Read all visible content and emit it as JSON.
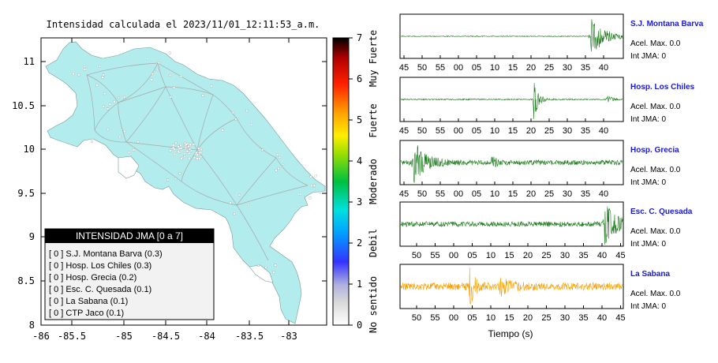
{
  "map": {
    "title": "Intensidad calculada el 2023/11/01_12:11:53_a.m.",
    "x_ticks": [
      "-86",
      "-85.5",
      "-85",
      "-84.5",
      "-84",
      "-83.5",
      "-83"
    ],
    "y_ticks": [
      "11",
      "10.5",
      "10",
      "9.5",
      "9",
      "8.5",
      "8"
    ],
    "land_color": "#b3ecec"
  },
  "colorbar": {
    "ticks": [
      "0",
      "1",
      "2",
      "3",
      "4",
      "5",
      "6",
      "7"
    ],
    "labels": [
      "No sentido",
      "Debil",
      "Moderado",
      "Fuerte",
      "Muy Fuerte"
    ]
  },
  "legend": {
    "title": "INTENSIDAD JMA [0 a 7]",
    "items": [
      "[ 0 ]  S.J. Montana Barva (0.3)",
      "[ 0 ]  Hosp. Los Chiles (0.3)",
      "[ 0 ]  Hosp. Grecia (0.2)",
      "[ 0 ]  Esc. C. Quesada (0.1)",
      "[ 0 ]  La Sabana (0.1)",
      "[ 0 ]  CTP Jaco (0.1)"
    ]
  },
  "waveforms": {
    "xlabel": "Tiempo (s)",
    "panels": [
      {
        "station": "S.J. Montana Barva",
        "acel": "Acel. Max. 0.0",
        "int": "Int JMA: 0",
        "color": "#1a7a1a",
        "ticks": [
          "45",
          "50",
          "55",
          "00",
          "05",
          "10",
          "15",
          "20",
          "25",
          "30",
          "35",
          "40"
        ]
      },
      {
        "station": "Hosp. Los Chiles",
        "acel": "Acel. Max. 0.0",
        "int": "Int JMA: 0",
        "color": "#1a7a1a",
        "ticks": [
          "45",
          "50",
          "55",
          "00",
          "05",
          "10",
          "15",
          "20",
          "25",
          "30",
          "35",
          "40"
        ]
      },
      {
        "station": "Hosp. Grecia",
        "acel": "Acel. Max. 0.0",
        "int": "Int JMA: 0",
        "color": "#1a7a1a",
        "ticks": [
          "45",
          "50",
          "55",
          "00",
          "05",
          "10",
          "15",
          "20",
          "25",
          "30",
          "35",
          "40"
        ]
      },
      {
        "station": "Esc. C. Quesada",
        "acel": "Acel. Max. 0.0",
        "int": "Int JMA: 0",
        "color": "#1a7a1a",
        "ticks": [
          "50",
          "55",
          "00",
          "05",
          "10",
          "15",
          "20",
          "25",
          "30",
          "35",
          "40",
          "45"
        ]
      },
      {
        "station": "La Sabana",
        "acel": "Acel. Max. 0.0",
        "int": "Int JMA: 0",
        "color": "#f5a000",
        "ticks": [
          "50",
          "55",
          "00",
          "05",
          "10",
          "15",
          "20",
          "25",
          "30",
          "35",
          "40",
          "45"
        ]
      }
    ]
  },
  "chart_data": [
    {
      "type": "map",
      "title": "Intensidad calculada el 2023/11/01_12:11:53_a.m.",
      "xlim": [
        -86,
        -82.6
      ],
      "ylim": [
        8,
        11.35
      ],
      "x_ticks": [
        -86,
        -85.5,
        -85,
        -84.5,
        -84,
        -83.5,
        -83
      ],
      "y_ticks": [
        8,
        8.5,
        9,
        9.5,
        10,
        10.5,
        11
      ],
      "colorbar": {
        "range": [
          0,
          7
        ],
        "labels": [
          "No sentido",
          "Debil",
          "Moderado",
          "Fuerte",
          "Muy Fuerte"
        ]
      },
      "stations": [
        {
          "name": "S.J. Montana Barva",
          "intensity": 0,
          "value": 0.3
        },
        {
          "name": "Hosp. Los Chiles",
          "intensity": 0,
          "value": 0.3
        },
        {
          "name": "Hosp. Grecia",
          "intensity": 0,
          "value": 0.2
        },
        {
          "name": "Esc. C. Quesada",
          "intensity": 0,
          "value": 0.1
        },
        {
          "name": "La Sabana",
          "intensity": 0,
          "value": 0.1
        },
        {
          "name": "CTP Jaco",
          "intensity": 0,
          "value": 0.1
        }
      ]
    },
    {
      "type": "line",
      "xlabel": "Tiempo (s)",
      "series": [
        {
          "name": "S.J. Montana Barva",
          "bursts": [
            {
              "t": 0.86,
              "w": 0.06,
              "a": 1.0
            }
          ],
          "noise": 0.02
        },
        {
          "name": "Hosp. Los Chiles",
          "bursts": [
            {
              "t": 0.6,
              "w": 0.02,
              "a": 1.0
            },
            {
              "t": 0.93,
              "w": 0.02,
              "a": 0.2
            }
          ],
          "noise": 0.03
        },
        {
          "name": "Hosp. Grecia",
          "bursts": [
            {
              "t": 0.06,
              "w": 0.05,
              "a": 1.0
            },
            {
              "t": 0.41,
              "w": 0.02,
              "a": 0.35
            }
          ],
          "noise": 0.12
        },
        {
          "name": "Esc. C. Quesada",
          "bursts": [
            {
              "t": 0.92,
              "w": 0.05,
              "a": 1.0
            }
          ],
          "noise": 0.12
        },
        {
          "name": "La Sabana",
          "bursts": [
            {
              "t": 0.31,
              "w": 0.02,
              "a": 1.0
            },
            {
              "t": 0.45,
              "w": 0.05,
              "a": 0.35
            }
          ],
          "noise": 0.18
        }
      ]
    }
  ]
}
